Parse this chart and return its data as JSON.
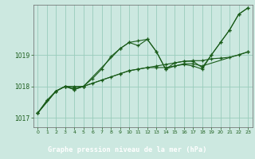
{
  "background_color": "#cce8e0",
  "plot_bg_color": "#cce8e0",
  "label_bg_color": "#2d6b2d",
  "grid_color": "#99ccbb",
  "line_color": "#1a5c1a",
  "marker_color": "#1a5c1a",
  "xlabel": "Graphe pression niveau de la mer (hPa)",
  "ylim": [
    1016.7,
    1020.6
  ],
  "xlim": [
    -0.5,
    23.5
  ],
  "yticks": [
    1017,
    1018,
    1019
  ],
  "xticks": [
    0,
    1,
    2,
    3,
    4,
    5,
    6,
    7,
    8,
    9,
    10,
    11,
    12,
    13,
    14,
    15,
    16,
    17,
    18,
    19,
    20,
    21,
    22,
    23
  ],
  "series": [
    {
      "x": [
        0,
        1,
        2,
        3,
        4,
        5,
        6,
        7,
        8,
        9,
        10,
        11,
        12,
        13,
        14,
        15,
        16,
        17,
        18,
        19,
        20,
        21,
        22,
        23
      ],
      "y": [
        1017.15,
        1017.55,
        1017.85,
        1018.0,
        1017.95,
        1018.0,
        1018.25,
        1018.55,
        1018.95,
        1019.2,
        1019.4,
        1019.45,
        1019.5,
        1019.1,
        1018.55,
        1018.65,
        1018.7,
        1018.65,
        1018.55,
        1019.0,
        1019.4,
        1019.8,
        1020.3,
        1020.5
      ]
    },
    {
      "x": [
        0,
        1,
        2,
        3,
        4,
        5,
        6,
        7,
        8,
        9,
        10,
        11,
        12,
        13,
        14,
        15,
        16,
        17,
        18,
        19,
        20,
        21,
        22,
        23
      ],
      "y": [
        1017.15,
        1017.55,
        1017.85,
        1018.0,
        1018.0,
        1018.0,
        1018.1,
        1018.2,
        1018.3,
        1018.4,
        1018.5,
        1018.55,
        1018.6,
        1018.65,
        1018.7,
        1018.75,
        1018.8,
        1018.82,
        1018.82,
        1018.88,
        1018.9,
        1018.93,
        1019.0,
        1019.1
      ]
    },
    {
      "x": [
        0,
        2,
        3,
        4,
        5,
        9,
        10,
        11,
        12,
        13,
        14,
        15,
        16,
        17,
        18,
        19,
        20,
        21,
        22,
        23
      ],
      "y": [
        1017.15,
        1017.85,
        1018.0,
        1017.9,
        1018.0,
        1019.2,
        1019.4,
        1019.3,
        1019.5,
        1019.1,
        1018.55,
        1018.75,
        1018.8,
        1018.8,
        1018.6,
        1019.0,
        1019.4,
        1019.8,
        1020.3,
        1020.5
      ]
    },
    {
      "x": [
        0,
        2,
        3,
        4,
        5,
        9,
        10,
        11,
        12,
        13,
        14,
        15,
        16,
        17,
        18,
        23
      ],
      "y": [
        1017.15,
        1017.85,
        1018.0,
        1017.9,
        1018.0,
        1018.4,
        1018.5,
        1018.55,
        1018.6,
        1018.6,
        1018.6,
        1018.65,
        1018.72,
        1018.72,
        1018.65,
        1019.1
      ]
    }
  ]
}
